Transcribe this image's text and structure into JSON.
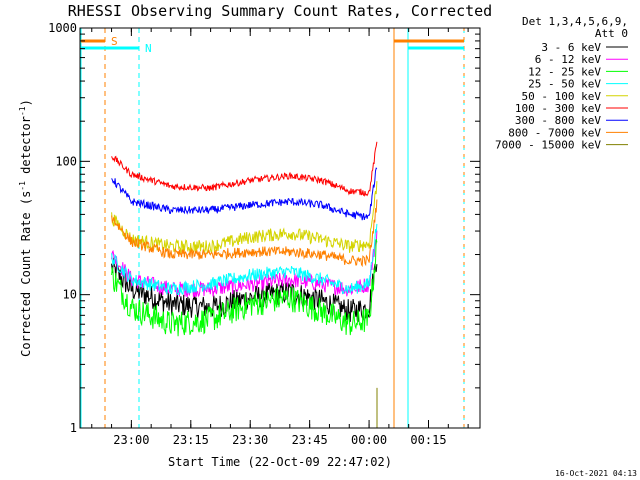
{
  "chart_data": {
    "type": "line",
    "title": "RHESSI Observing Summary Count Rates, Corrected",
    "xlabel": "Start Time (22-Oct-09 22:47:02)",
    "ylabel": "Corrected Count Rate (s⁻¹ detector⁻¹)",
    "ylabel_parts": {
      "pre": "Corrected Count Rate (s",
      "sup1": "-1",
      "mid": " detector",
      "sup2": "-1",
      "post": ")"
    },
    "yscale": "log",
    "ylim": [
      1,
      1000
    ],
    "xlim": [
      "22:47:02",
      "00:28:00"
    ],
    "x_ticks": [
      "23:00",
      "23:15",
      "23:30",
      "23:45",
      "00:00",
      "00:15"
    ],
    "y_ticks": [
      "1",
      "10",
      "100",
      "1000"
    ],
    "legend": {
      "header1": "Det 1,3,4,5,6,9,",
      "header2": "Att 0",
      "placement": "right"
    },
    "series": [
      {
        "name": "3 - 6 keV",
        "color": "#000000",
        "x": [
          "22:55",
          "23:00",
          "23:10",
          "23:20",
          "23:30",
          "23:40",
          "23:48",
          "23:55",
          "00:00",
          "00:02"
        ],
        "y": [
          16,
          11,
          8.5,
          8,
          9.5,
          10.5,
          9,
          7.5,
          8,
          20
        ]
      },
      {
        "name": "6 - 12 keV",
        "color": "#ff00ff",
        "x": [
          "22:55",
          "23:00",
          "23:10",
          "23:20",
          "23:30",
          "23:40",
          "23:48",
          "23:55",
          "00:00",
          "00:02"
        ],
        "y": [
          20,
          13,
          11,
          11,
          12,
          13,
          12,
          11,
          12,
          30
        ]
      },
      {
        "name": "12 - 25 keV",
        "color": "#00ff00",
        "x": [
          "22:55",
          "23:00",
          "23:10",
          "23:20",
          "23:30",
          "23:40",
          "23:48",
          "23:55",
          "00:00",
          "00:02"
        ],
        "y": [
          14,
          8,
          6,
          6.5,
          8.5,
          9.5,
          7.5,
          6,
          6.5,
          25
        ]
      },
      {
        "name": "25 - 50 keV",
        "color": "#00ffff",
        "x": [
          "22:55",
          "23:00",
          "23:10",
          "23:20",
          "23:30",
          "23:40",
          "23:48",
          "23:55",
          "00:00",
          "00:02"
        ],
        "y": [
          19,
          13,
          11,
          12,
          14,
          15,
          13,
          11,
          12,
          35
        ]
      },
      {
        "name": "50 - 100 keV",
        "color": "#d4d400",
        "x": [
          "22:55",
          "23:00",
          "23:10",
          "23:20",
          "23:30",
          "23:40",
          "23:48",
          "23:55",
          "00:00",
          "00:02"
        ],
        "y": [
          38,
          26,
          23,
          23,
          27,
          29,
          26,
          23,
          24,
          70
        ]
      },
      {
        "name": "100 - 300 keV",
        "color": "#ff0000",
        "x": [
          "22:55",
          "23:00",
          "23:10",
          "23:20",
          "23:30",
          "23:40",
          "23:48",
          "23:55",
          "00:00",
          "00:02"
        ],
        "y": [
          110,
          80,
          65,
          63,
          72,
          78,
          72,
          60,
          58,
          140
        ]
      },
      {
        "name": "300 - 800 keV",
        "color": "#0000ff",
        "x": [
          "22:55",
          "23:00",
          "23:10",
          "23:20",
          "23:30",
          "23:40",
          "23:48",
          "23:55",
          "00:00",
          "00:02"
        ],
        "y": [
          75,
          50,
          43,
          43,
          47,
          50,
          47,
          40,
          38,
          95
        ]
      },
      {
        "name": "800 - 7000 keV",
        "color": "#ff8000",
        "x": [
          "22:55",
          "23:00",
          "23:10",
          "23:20",
          "23:30",
          "23:40",
          "23:48",
          "23:55",
          "00:00",
          "00:02"
        ],
        "y": [
          38,
          25,
          20,
          20,
          21,
          21,
          20,
          18,
          18,
          50
        ]
      },
      {
        "name": "7000 - 15000 keV",
        "color": "#808000",
        "x": [
          "00:02"
        ],
        "y": [
          2
        ]
      }
    ],
    "markers": {
      "s_label": "S",
      "n_label": "N"
    }
  },
  "timestamp": "16-Oct-2021 04:13"
}
